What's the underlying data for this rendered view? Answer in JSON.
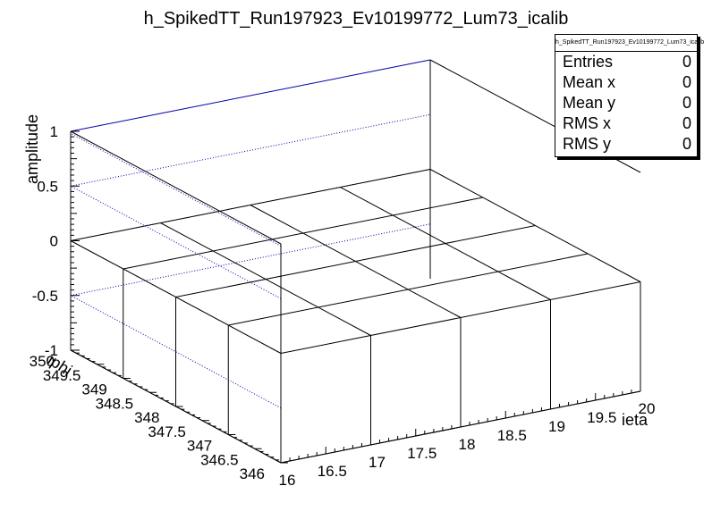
{
  "chart_data": {
    "type": "lego3d",
    "title": "h_SpikedTT_Run197923_Ev10199772_Lum73_icalib",
    "xlabel": "ieta",
    "ylabel": "iphi",
    "zlabel": "amplitude",
    "xlim": [
      16,
      20
    ],
    "ylim": [
      346,
      350
    ],
    "zlim": [
      -1,
      1
    ],
    "x_ticks": [
      "16",
      "16.5",
      "17",
      "17.5",
      "18",
      "18.5",
      "19",
      "19.5",
      "20"
    ],
    "y_ticks": [
      "346",
      "346.5",
      "347",
      "347.5",
      "348",
      "348.5",
      "349",
      "349.5",
      "350"
    ],
    "z_ticks": [
      "-1",
      "-0.5",
      "0",
      "0.5",
      "1"
    ],
    "bins_x": [
      16,
      17,
      18,
      19,
      20
    ],
    "bins_y": [
      346,
      347,
      348,
      349,
      350
    ],
    "values": [
      [
        0,
        0,
        0,
        0,
        0
      ],
      [
        0,
        0,
        0,
        0,
        0
      ],
      [
        0,
        0,
        0,
        0,
        0
      ],
      [
        0,
        0,
        0,
        0,
        0
      ],
      [
        0,
        0,
        0,
        0,
        0
      ]
    ],
    "grid": true,
    "legend_position": "top-right"
  },
  "stats_box": {
    "title": "h_SpikedTT_Run197923_Ev10199772_Lum73_icalib",
    "rows": [
      {
        "label": "Entries",
        "value": "0"
      },
      {
        "label": "Mean x",
        "value": "0"
      },
      {
        "label": "Mean y",
        "value": "0"
      },
      {
        "label": "RMS x",
        "value": "0"
      },
      {
        "label": "RMS y",
        "value": "0"
      }
    ]
  }
}
